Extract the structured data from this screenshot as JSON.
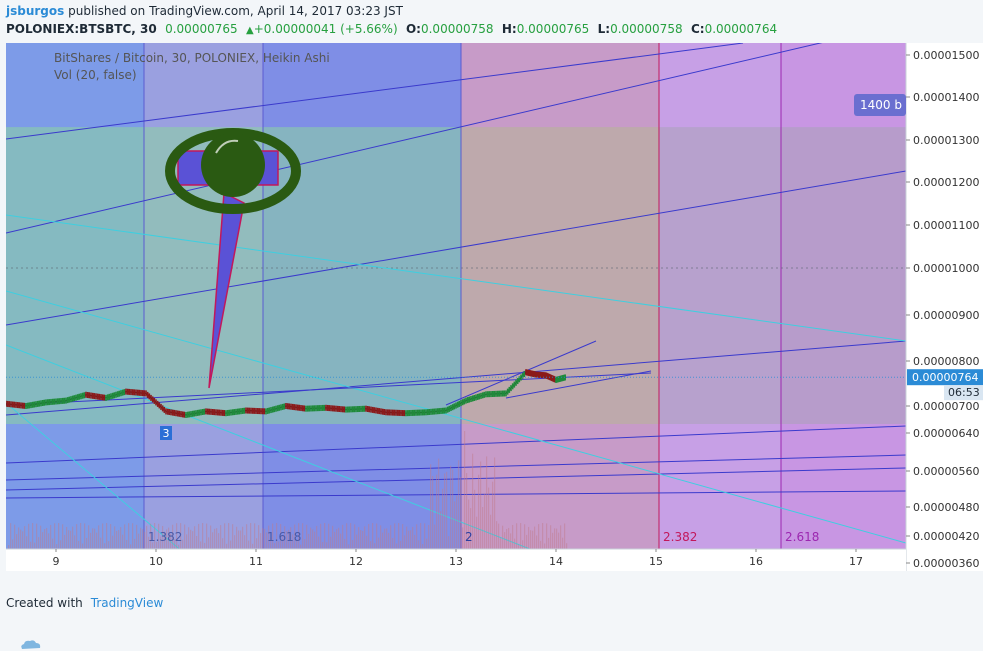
{
  "header": {
    "username": "jsburgos",
    "published": "published on TradingView.com, April 14, 2017 03:23 JST",
    "symbol": "POLONIEX:BTSBTC, 30",
    "last": "0.00000765",
    "change": "+0.00000041 (+5.66%)",
    "o_label": "O:",
    "o_value": "0.00000758",
    "h_label": "H:",
    "h_value": "0.00000765",
    "l_label": "L:",
    "l_value": "0.00000758",
    "c_label": "C:",
    "c_value": "0.00000764"
  },
  "legend": {
    "title": "BitShares / Bitcoin, 30, POLONIEX, Heikin Ashi",
    "volume": "Vol (20, false)"
  },
  "price_badge": "0.00000764",
  "countdown": "06:53",
  "alert_label": "1400 b",
  "footer": {
    "created_with": "Created with",
    "brand": "TradingView"
  },
  "colors": {
    "accent": "#2b8bd6",
    "up": "#27a040",
    "fib_red": "#c2185b",
    "fib_purple": "#9c27b0"
  },
  "chart_data": {
    "type": "candlestick",
    "title": "BitShares / Bitcoin, 30, POLONIEX, Heikin Ashi",
    "x_ticks": [
      "9",
      "10",
      "11",
      "12",
      "13",
      "14",
      "15",
      "16",
      "17"
    ],
    "y_ticks": [
      "0.00001500",
      "0.00001400",
      "0.00001300",
      "0.00001200",
      "0.00001100",
      "0.00001000",
      "0.00000900",
      "0.00000800",
      "0.00000700",
      "0.00000640",
      "0.00000560",
      "0.00000480",
      "0.00000420",
      "0.00000360"
    ],
    "ylim": [
      3.6e-06,
      1.52e-05
    ],
    "xlim": [
      8.5,
      17.5
    ],
    "fib_time_zones": [
      {
        "label": "",
        "x": 9.88
      },
      {
        "label": "1.382",
        "x": 9.88
      },
      {
        "label": "1.618",
        "x": 11.07
      },
      {
        "label": "2",
        "x": 13.05
      },
      {
        "label": "2.382",
        "x": 15.03
      },
      {
        "label": "2.618",
        "x": 16.25
      }
    ],
    "marker": {
      "label": "3",
      "x": 10.1
    },
    "last_price": 7.64e-06,
    "price_series": {
      "x": [
        8.5,
        8.7,
        8.9,
        9.1,
        9.3,
        9.5,
        9.7,
        9.9,
        10.1,
        10.3,
        10.5,
        10.7,
        10.9,
        11.1,
        11.3,
        11.5,
        11.7,
        11.9,
        12.1,
        12.3,
        12.5,
        12.7,
        12.9,
        13.1,
        13.3,
        13.5,
        13.7,
        13.8,
        13.9,
        14.0,
        14.1
      ],
      "y": [
        7.05e-06,
        7e-06,
        7.08e-06,
        7.12e-06,
        7.25e-06,
        7.18e-06,
        7.32e-06,
        7.28e-06,
        6.88e-06,
        6.8e-06,
        6.88e-06,
        6.84e-06,
        6.9e-06,
        6.88e-06,
        7e-06,
        6.94e-06,
        6.96e-06,
        6.92e-06,
        6.94e-06,
        6.86e-06,
        6.84e-06,
        6.86e-06,
        6.9e-06,
        7.12e-06,
        7.26e-06,
        7.28e-06,
        7.75e-06,
        7.7e-06,
        7.68e-06,
        7.58e-06,
        7.64e-06
      ]
    }
  }
}
